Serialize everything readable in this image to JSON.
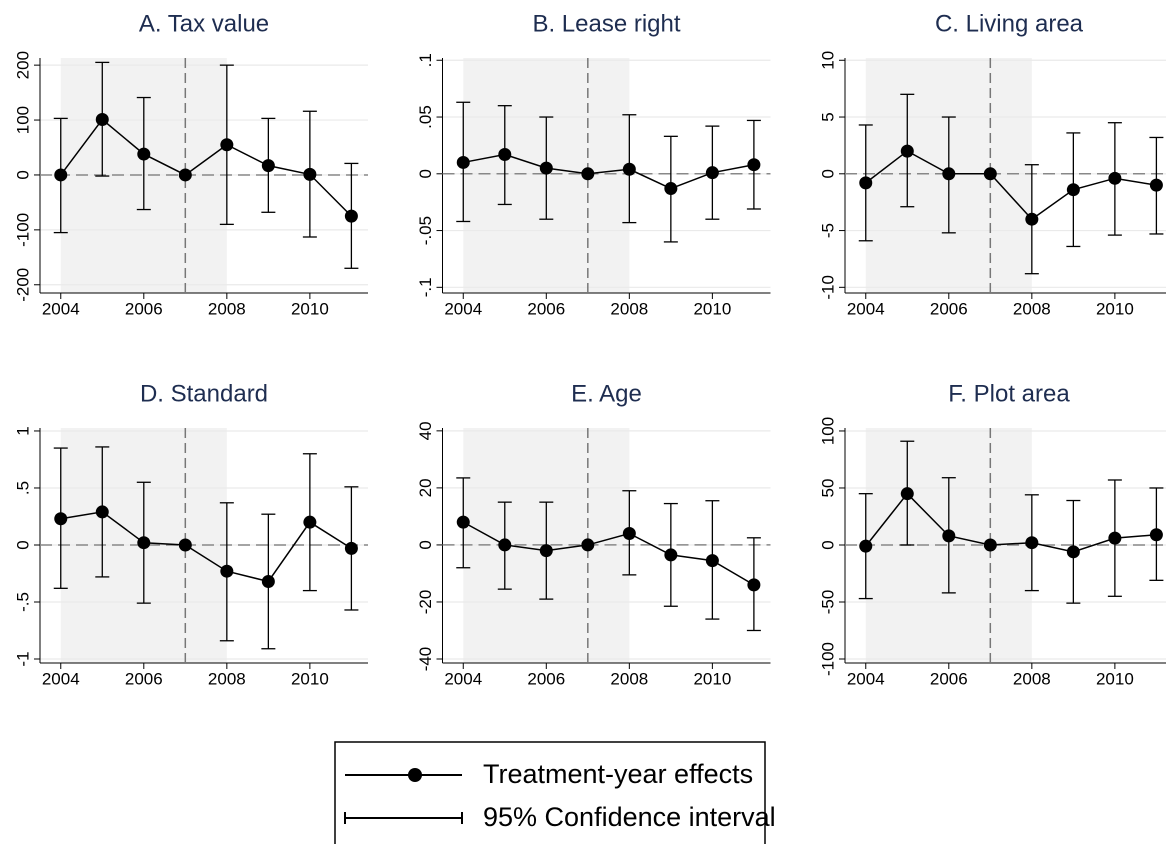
{
  "chart_data": [
    {
      "type": "line",
      "title": "A. Tax value",
      "x": [
        2004,
        2005,
        2006,
        2007,
        2008,
        2009,
        2010,
        2011
      ],
      "values": [
        0,
        101,
        38,
        0,
        55,
        17,
        1,
        -75
      ],
      "ci_low": [
        -105,
        -2,
        -63,
        null,
        -90,
        -68,
        -113,
        -170
      ],
      "ci_high": [
        103,
        205,
        141,
        null,
        200,
        103,
        116,
        21
      ],
      "xlim": [
        2003.5,
        2011.4
      ],
      "xticks": [
        2004,
        2006,
        2008,
        2010
      ],
      "ylim": [
        -215,
        213
      ],
      "yticks": [
        -200,
        -100,
        0,
        100,
        200
      ],
      "color": "#000000",
      "grid": true,
      "shade": [
        2004,
        2008
      ],
      "vline": 2007,
      "hline": 0
    },
    {
      "type": "line",
      "title": "B. Lease right",
      "x": [
        2004,
        2005,
        2006,
        2007,
        2008,
        2009,
        2010,
        2011
      ],
      "values": [
        0.01,
        0.017,
        0.005,
        0,
        0.004,
        -0.013,
        0.001,
        0.008
      ],
      "ci_low": [
        -0.042,
        -0.027,
        -0.04,
        null,
        -0.043,
        -0.06,
        -0.04,
        -0.031
      ],
      "ci_high": [
        0.063,
        0.06,
        0.05,
        null,
        0.052,
        0.033,
        0.042,
        0.047
      ],
      "xlim": [
        2003.5,
        2011.4
      ],
      "xticks": [
        2004,
        2006,
        2008,
        2010
      ],
      "ylim": [
        -0.105,
        0.102
      ],
      "yticks": [
        {
          "value": -0.1,
          "label": "-.1"
        },
        {
          "value": -0.05,
          "label": "-.05"
        },
        0,
        {
          "value": 0.05,
          "label": ".05"
        },
        {
          "value": 0.1,
          "label": ".1"
        }
      ],
      "color": "#000000",
      "grid": true,
      "shade": [
        2004,
        2008
      ],
      "vline": 2007,
      "hline": 0
    },
    {
      "type": "line",
      "title": "C. Living area",
      "x": [
        2004,
        2005,
        2006,
        2007,
        2008,
        2009,
        2010,
        2011
      ],
      "values": [
        -0.8,
        2.0,
        0,
        0,
        -4.0,
        -1.4,
        -0.4,
        -1.0
      ],
      "ci_low": [
        -5.9,
        -2.9,
        -5.2,
        null,
        -8.8,
        -6.4,
        -5.4,
        -5.3
      ],
      "ci_high": [
        4.3,
        7.0,
        5.0,
        null,
        0.8,
        3.6,
        4.5,
        3.2
      ],
      "xlim": [
        2003.5,
        2011.4
      ],
      "xticks": [
        2004,
        2006,
        2008,
        2010
      ],
      "ylim": [
        -10.5,
        10.2
      ],
      "yticks": [
        -10,
        -5,
        0,
        5,
        10
      ],
      "color": "#000000",
      "grid": true,
      "shade": [
        2004,
        2008
      ],
      "vline": 2007,
      "hline": 0
    },
    {
      "type": "line",
      "title": "D. Standard",
      "x": [
        2004,
        2005,
        2006,
        2007,
        2008,
        2009,
        2010,
        2011
      ],
      "values": [
        0.23,
        0.29,
        0.02,
        0,
        -0.23,
        -0.32,
        0.2,
        -0.03
      ],
      "ci_low": [
        -0.38,
        -0.28,
        -0.51,
        null,
        -0.84,
        -0.91,
        -0.4,
        -0.57
      ],
      "ci_high": [
        0.85,
        0.86,
        0.55,
        null,
        0.37,
        0.27,
        0.8,
        0.51
      ],
      "xlim": [
        2003.5,
        2011.4
      ],
      "xticks": [
        2004,
        2006,
        2008,
        2010
      ],
      "ylim": [
        -1.035,
        1.026
      ],
      "yticks": [
        -1,
        {
          "value": -0.5,
          "label": "-.5"
        },
        0,
        {
          "value": 0.5,
          "label": ".5"
        },
        1
      ],
      "color": "#000000",
      "grid": true,
      "shade": [
        2004,
        2008
      ],
      "vline": 2007,
      "hline": 0
    },
    {
      "type": "line",
      "title": "E. Age",
      "x": [
        2004,
        2005,
        2006,
        2007,
        2008,
        2009,
        2010,
        2011
      ],
      "values": [
        8,
        0,
        -2,
        0,
        4,
        -3.5,
        -5.5,
        -14
      ],
      "ci_low": [
        -8,
        -15.5,
        -19,
        null,
        -10.5,
        -21.5,
        -26,
        -30
      ],
      "ci_high": [
        23.5,
        15,
        15,
        null,
        19,
        14.5,
        15.5,
        2.5
      ],
      "xlim": [
        2003.5,
        2011.4
      ],
      "xticks": [
        2004,
        2006,
        2008,
        2010
      ],
      "ylim": [
        -41.4,
        41
      ],
      "yticks": [
        -40,
        -20,
        0,
        20,
        40
      ],
      "color": "#000000",
      "grid": true,
      "shade": [
        2004,
        2008
      ],
      "vline": 2007,
      "hline": 0
    },
    {
      "type": "line",
      "title": "F. Plot area",
      "x": [
        2004,
        2005,
        2006,
        2007,
        2008,
        2009,
        2010,
        2011
      ],
      "values": [
        -1,
        45,
        8,
        0,
        2,
        -6,
        6,
        9
      ],
      "ci_low": [
        -47,
        0,
        -42,
        null,
        -40,
        -51,
        -45,
        -31
      ],
      "ci_high": [
        45,
        91,
        59,
        null,
        44,
        39,
        57,
        50
      ],
      "xlim": [
        2003.5,
        2011.4
      ],
      "xticks": [
        2004,
        2006,
        2008,
        2010
      ],
      "ylim": [
        -103.5,
        102.6
      ],
      "yticks": [
        -100,
        -50,
        0,
        50,
        100
      ],
      "color": "#000000",
      "grid": true,
      "shade": [
        2004,
        2008
      ],
      "vline": 2007,
      "hline": 0
    }
  ],
  "legend": {
    "entries": [
      "Treatment-year effects",
      "95% Confidence interval"
    ]
  }
}
